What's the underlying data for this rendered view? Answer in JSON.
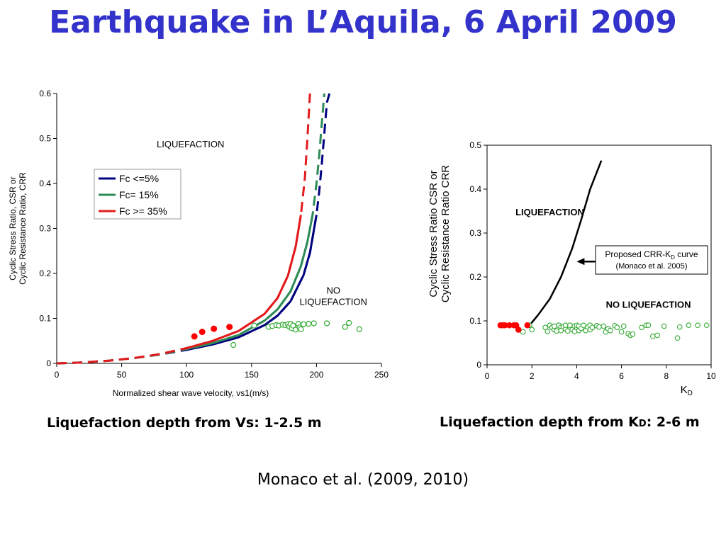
{
  "slide": {
    "title": "Earthquake in L’Aquila, 6 April 2009",
    "caption_left": "Liquefaction depth from Vs: 1-2.5 m",
    "caption_right_pre": "Liquefaction depth from K",
    "caption_right_sub": "D",
    "caption_right_post": ": 2-6 m",
    "reference": "Monaco et al. (2009, 2010)"
  },
  "chart_data": [
    {
      "type": "line",
      "xlabel": "Normalized shear wave velocity, vs1(m/s)",
      "ylabel_lines": [
        "Cyclic Stress Ratio, CSR or",
        "Cyclic Resistance Ratio, CRR"
      ],
      "xlim": [
        0,
        250
      ],
      "ylim": [
        0,
        0.6
      ],
      "x_ticks": [
        0,
        50,
        100,
        150,
        200,
        250
      ],
      "y_ticks": [
        0,
        0.1,
        0.2,
        0.3,
        0.4,
        0.5,
        0.6
      ],
      "legend_position": "upper-left",
      "annotations": [
        {
          "lines": [
            "LIQUEFACTION"
          ],
          "x": 103,
          "y": 0.48
        },
        {
          "lines": [
            "NO",
            "LIQUEFACTION"
          ],
          "x": 213,
          "y": 0.155
        }
      ],
      "series": [
        {
          "name": "Fc <=5%",
          "color": "#000080",
          "x": [
            0,
            20,
            40,
            60,
            80,
            100,
            120,
            140,
            160,
            170,
            180,
            190,
            195,
            200,
            202,
            204,
            206,
            208,
            210
          ],
          "y": [
            0.0,
            0.002,
            0.006,
            0.012,
            0.02,
            0.03,
            0.042,
            0.058,
            0.085,
            0.106,
            0.138,
            0.196,
            0.246,
            0.33,
            0.38,
            0.44,
            0.51,
            0.58,
            0.6
          ]
        },
        {
          "name": "Fc= 15%",
          "color": "#2e8b57",
          "x": [
            0,
            20,
            40,
            60,
            80,
            100,
            120,
            140,
            160,
            170,
            180,
            188,
            193,
            197,
            200,
            202,
            204,
            206
          ],
          "y": [
            0.0,
            0.002,
            0.006,
            0.012,
            0.02,
            0.032,
            0.045,
            0.063,
            0.095,
            0.12,
            0.16,
            0.216,
            0.27,
            0.33,
            0.4,
            0.46,
            0.53,
            0.6
          ]
        },
        {
          "name": "Fc >= 35%",
          "color": "#e31a1c",
          "x": [
            0,
            20,
            40,
            60,
            80,
            100,
            120,
            140,
            160,
            170,
            178,
            184,
            188,
            191,
            193,
            195
          ],
          "y": [
            0.0,
            0.002,
            0.006,
            0.012,
            0.021,
            0.034,
            0.05,
            0.072,
            0.11,
            0.145,
            0.195,
            0.26,
            0.33,
            0.41,
            0.5,
            0.6
          ]
        }
      ],
      "points_liquefied": {
        "color": "#ff0000",
        "x": [
          106,
          112,
          121,
          133
        ],
        "y": [
          0.06,
          0.07,
          0.077,
          0.081
        ]
      },
      "points_non_liquefied": {
        "color": "#33aa33",
        "x": [
          136,
          152,
          163,
          166,
          169,
          171,
          174,
          176,
          178,
          179,
          180,
          181,
          182,
          184,
          186,
          187,
          188,
          190,
          194,
          198,
          208,
          222,
          225,
          233
        ],
        "y": [
          0.041,
          0.084,
          0.081,
          0.083,
          0.085,
          0.084,
          0.086,
          0.085,
          0.087,
          0.082,
          0.088,
          0.078,
          0.084,
          0.075,
          0.088,
          0.08,
          0.076,
          0.087,
          0.088,
          0.089,
          0.089,
          0.081,
          0.09,
          0.076
        ]
      }
    },
    {
      "type": "scatter",
      "xlabel": "K",
      "xlabel_sub": "D",
      "ylabel_lines": [
        "Cyclic Stress Ratio CSR or",
        "Cyclic Resistance Ratio CRR"
      ],
      "xlim": [
        0,
        10
      ],
      "ylim": [
        0,
        0.5
      ],
      "x_ticks": [
        0,
        2,
        4,
        6,
        8,
        10
      ],
      "y_ticks": [
        0,
        0.1,
        0.2,
        0.3,
        0.4,
        0.5
      ],
      "annotations": [
        {
          "lines": [
            "LIQUEFACTION"
          ],
          "x": 2.8,
          "y": 0.34,
          "bold": true
        },
        {
          "lines": [
            "NO LIQUEFACTION"
          ],
          "x": 7.2,
          "y": 0.13,
          "bold": true
        }
      ],
      "callout": {
        "text_pre": "Proposed CRR-K",
        "text_sub": "D",
        "text_post": " curve",
        "text_line2": "(Monaco et al. 2005)",
        "arrow_to": {
          "x": 4.0,
          "y": 0.235
        }
      },
      "series": [
        {
          "name": "Proposed CRR-KD curve",
          "color": "#000000",
          "x": [
            1.9,
            2.3,
            2.8,
            3.3,
            3.8,
            4.2,
            4.6,
            5.1
          ],
          "y": [
            0.09,
            0.115,
            0.15,
            0.2,
            0.265,
            0.33,
            0.4,
            0.465
          ]
        }
      ],
      "points_liquefied": {
        "color": "#ff0000",
        "x": [
          0.6,
          0.7,
          0.8,
          1.0,
          1.2,
          1.3,
          1.4,
          1.8
        ],
        "y": [
          0.09,
          0.09,
          0.09,
          0.09,
          0.09,
          0.09,
          0.08,
          0.09
        ]
      },
      "points_non_liquefied": {
        "color": "#33aa33",
        "x": [
          1.6,
          1.9,
          2.0,
          2.6,
          2.7,
          2.8,
          2.9,
          3.0,
          3.0,
          3.1,
          3.2,
          3.3,
          3.3,
          3.4,
          3.5,
          3.5,
          3.6,
          3.7,
          3.7,
          3.8,
          3.9,
          3.9,
          4.0,
          4.0,
          4.1,
          4.1,
          4.2,
          4.3,
          4.4,
          4.5,
          4.6,
          4.6,
          4.7,
          4.9,
          5.0,
          5.2,
          5.3,
          5.4,
          5.5,
          5.7,
          5.8,
          6.0,
          6.1,
          6.3,
          6.4,
          6.5,
          6.9,
          7.1,
          7.2,
          7.4,
          7.6,
          7.9,
          8.5,
          8.6,
          9.0,
          9.4,
          9.8
        ],
        "y": [
          0.075,
          0.09,
          0.08,
          0.085,
          0.076,
          0.09,
          0.085,
          0.08,
          0.088,
          0.077,
          0.09,
          0.085,
          0.078,
          0.087,
          0.082,
          0.09,
          0.077,
          0.086,
          0.09,
          0.08,
          0.088,
          0.076,
          0.085,
          0.09,
          0.078,
          0.088,
          0.083,
          0.09,
          0.078,
          0.086,
          0.08,
          0.09,
          0.085,
          0.089,
          0.086,
          0.088,
          0.075,
          0.082,
          0.078,
          0.089,
          0.085,
          0.075,
          0.088,
          0.071,
          0.067,
          0.07,
          0.085,
          0.09,
          0.09,
          0.065,
          0.067,
          0.088,
          0.061,
          0.086,
          0.09,
          0.09,
          0.09
        ]
      }
    }
  ]
}
